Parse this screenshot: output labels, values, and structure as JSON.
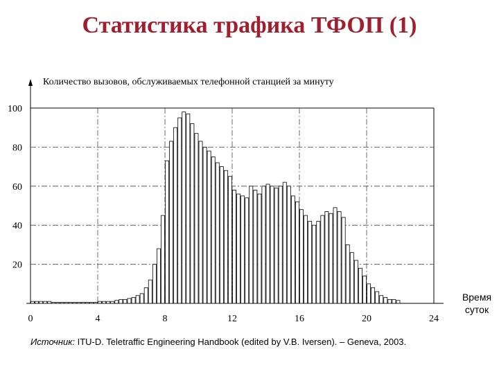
{
  "slide": {
    "title": "Статистика трафика ТФОП (1)"
  },
  "source": {
    "label": "Источник:",
    "text": " ITU-D. Teletraffic Engineering Handbook (edited by V.B. Iversen). – Geneva, 2003."
  },
  "chart_data": {
    "type": "bar",
    "title": "",
    "ylabel": "Количество вызовов, обслуживаемых телефонной станцией за минуту",
    "xlabel": "Время суток",
    "xlabel_lines": [
      "Время",
      "суток"
    ],
    "xlim": [
      0,
      24
    ],
    "ylim": [
      0,
      100
    ],
    "x_ticks": [
      "0",
      "4",
      "8",
      "12",
      "16",
      "20",
      "24"
    ],
    "y_ticks": [
      "20",
      "40",
      "60",
      "80",
      "100"
    ],
    "grid": true,
    "bin_width_hours": 0.25,
    "values": [
      1,
      1,
      1,
      1,
      1,
      0.5,
      0.5,
      0.5,
      0.5,
      0.5,
      0.5,
      0.5,
      0.5,
      0.5,
      0.5,
      0.5,
      1,
      1,
      1,
      1,
      1.5,
      2,
      2,
      2.5,
      3,
      4,
      5,
      8,
      12,
      20,
      28,
      45,
      73,
      83,
      90,
      95,
      98,
      97,
      92,
      87,
      83,
      80,
      78,
      75,
      72,
      70,
      68,
      65,
      58,
      56,
      55,
      54,
      60,
      58,
      56,
      60,
      61,
      60,
      59,
      60,
      62,
      60,
      55,
      52,
      48,
      45,
      42,
      40,
      42,
      45,
      47,
      46,
      49,
      47,
      44,
      30,
      26,
      22,
      18,
      14,
      10,
      8,
      6,
      4,
      3,
      2,
      2,
      1.5
    ],
    "series": [
      {
        "values_ref": "values"
      }
    ]
  }
}
